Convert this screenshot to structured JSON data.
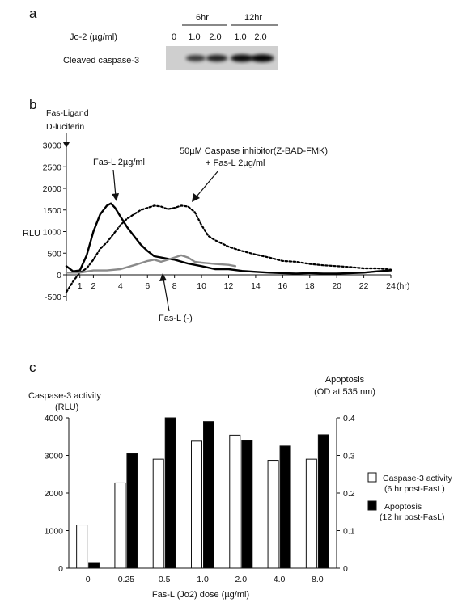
{
  "panel_a": {
    "letter": "a",
    "label_6hr": "6hr",
    "label_12hr": "12hr",
    "dose_label": "Jo-2 (µg/ml)",
    "doses": [
      "0",
      "1.0",
      "2.0",
      "1.0",
      "2.0"
    ],
    "blot_label": "Cleaved caspase-3",
    "band_intensity": [
      0.0,
      0.55,
      0.7,
      0.85,
      0.9
    ]
  },
  "panel_b": {
    "letter": "b",
    "arrow_label_line1": "Fas-Ligand",
    "arrow_label_line2": "D-luciferin",
    "annotation_fasl": "Fas-L 2µg/ml",
    "annotation_inhib_line1": "50µM Caspase inhibitor(Z-BAD-FMK)",
    "annotation_inhib_line2": "+ Fas-L 2µg/ml",
    "annotation_neg": "Fas-L (-)",
    "colors": {
      "fasl": "#000000",
      "inhibitor": "#000000",
      "negative": "#8a8a8a"
    }
  },
  "panel_c": {
    "letter": "c",
    "colors": {
      "caspase": "#ffffff",
      "apoptosis": "#000000"
    },
    "legend_caspase_line1": "Caspase-3 activity",
    "legend_caspase_line2": "(6 hr post-FasL)",
    "legend_apoptosis_line1": "Apoptosis",
    "legend_apoptosis_line2": "(12 hr post-FasL)"
  },
  "chart_data": [
    {
      "type": "line",
      "xlabel": "(hr)",
      "ylabel": "RLU",
      "xlim": [
        0,
        24
      ],
      "ylim": [
        -600,
        3000
      ],
      "x_ticks": [
        1,
        2,
        4,
        6,
        8,
        10,
        12,
        14,
        16,
        18,
        20,
        22,
        24
      ],
      "y_ticks": [
        -500,
        0,
        500,
        1000,
        1500,
        2000,
        2500,
        3000
      ],
      "series": [
        {
          "id": "fasl",
          "x": [
            0,
            0.5,
            1,
            1.5,
            2,
            2.5,
            3,
            3.3,
            3.6,
            4,
            4.5,
            5,
            5.5,
            6,
            6.5,
            7,
            7.5,
            8,
            9,
            10,
            11,
            12,
            13,
            14,
            15,
            16,
            17,
            18,
            19,
            20,
            21,
            22,
            23,
            24
          ],
          "y": [
            200,
            80,
            100,
            450,
            1000,
            1400,
            1600,
            1650,
            1550,
            1350,
            1100,
            900,
            700,
            550,
            430,
            400,
            370,
            350,
            260,
            200,
            130,
            130,
            90,
            70,
            50,
            40,
            30,
            40,
            30,
            30,
            40,
            50,
            80,
            100
          ]
        },
        {
          "id": "inhibitor",
          "x": [
            0,
            0.5,
            1,
            1.5,
            2,
            2.5,
            3,
            3.5,
            4,
            4.5,
            5,
            5.5,
            6,
            6.5,
            7,
            7.5,
            8,
            8.5,
            9,
            9.5,
            10,
            10.5,
            11,
            12,
            13,
            14,
            15,
            16,
            17,
            18,
            19,
            20,
            21,
            22,
            23,
            24
          ],
          "y": [
            -400,
            -150,
            50,
            150,
            350,
            600,
            750,
            950,
            1150,
            1300,
            1400,
            1500,
            1550,
            1600,
            1580,
            1520,
            1550,
            1600,
            1580,
            1450,
            1150,
            900,
            800,
            650,
            550,
            470,
            400,
            320,
            300,
            250,
            220,
            200,
            180,
            150,
            150,
            120
          ]
        },
        {
          "id": "negative",
          "x": [
            0,
            1,
            2,
            3,
            4,
            5,
            5.5,
            6,
            6.5,
            7,
            7.5,
            8,
            8.5,
            9,
            9.5,
            10,
            11,
            12,
            12.5
          ],
          "y": [
            50,
            50,
            100,
            100,
            130,
            220,
            270,
            320,
            350,
            300,
            350,
            400,
            450,
            400,
            300,
            280,
            250,
            230,
            200
          ]
        }
      ]
    },
    {
      "type": "bar",
      "title": "",
      "xlabel": "Fas-L (Jo2) dose (µg/ml)",
      "ylabel_left_line1": "Caspase-3 activity",
      "ylabel_left_line2": "(RLU)",
      "ylabel_right_line1": "Apoptosis",
      "ylabel_right_line2": "(OD at 535 nm)",
      "categories": [
        "0",
        "0.25",
        "0.5",
        "1.0",
        "2.0",
        "4.0",
        "8.0"
      ],
      "ylim_left": [
        0,
        4000
      ],
      "ylim_right": [
        0,
        0.4
      ],
      "y_ticks_left": [
        "0",
        "1000",
        "2000",
        "3000",
        "4000"
      ],
      "y_ticks_right": [
        "0",
        "0.1",
        "0.2",
        "0.3",
        "0.4"
      ],
      "series": [
        {
          "name": "Caspase-3 activity",
          "axis": "left",
          "values": [
            1150,
            2270,
            2900,
            3380,
            3540,
            2870,
            2900
          ]
        },
        {
          "name": "Apoptosis",
          "axis": "right",
          "values": [
            0.015,
            0.305,
            0.4,
            0.39,
            0.34,
            0.325,
            0.355
          ]
        }
      ]
    }
  ]
}
